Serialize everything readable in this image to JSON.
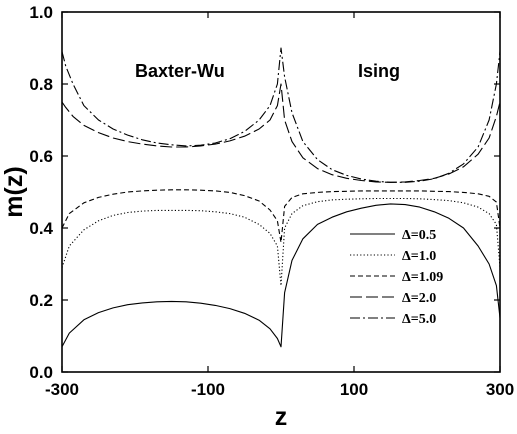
{
  "chart_data": {
    "type": "line",
    "xlabel": "z",
    "ylabel": "m(z)",
    "xlim": [
      -300,
      300
    ],
    "ylim": [
      0.0,
      1.0
    ],
    "x_ticks": [
      "-300",
      "-100",
      "100",
      "300"
    ],
    "y_ticks": [
      "0.0",
      "0.2",
      "0.4",
      "0.6",
      "0.8",
      "1.0"
    ],
    "annotations": [
      "Baxter-Wu",
      "Ising"
    ],
    "legend_position": "bottom-right",
    "grid": false,
    "series": [
      {
        "name": "Δ=0.5",
        "dash": "solid",
        "x": [
          -300,
          -290,
          -270,
          -250,
          -230,
          -210,
          -190,
          -170,
          -150,
          -130,
          -110,
          -90,
          -70,
          -50,
          -30,
          -15,
          -5,
          0,
          5,
          15,
          30,
          50,
          70,
          90,
          110,
          130,
          150,
          170,
          190,
          210,
          230,
          250,
          270,
          285,
          295,
          300
        ],
        "y": [
          0.07,
          0.108,
          0.145,
          0.165,
          0.178,
          0.187,
          0.192,
          0.195,
          0.196,
          0.195,
          0.191,
          0.185,
          0.176,
          0.163,
          0.144,
          0.12,
          0.093,
          0.07,
          0.22,
          0.31,
          0.37,
          0.41,
          0.43,
          0.445,
          0.455,
          0.463,
          0.467,
          0.465,
          0.458,
          0.445,
          0.427,
          0.4,
          0.35,
          0.3,
          0.24,
          0.15
        ]
      },
      {
        "name": "Δ=1.0",
        "dash": "dotted",
        "x": [
          -300,
          -290,
          -270,
          -250,
          -230,
          -210,
          -190,
          -170,
          -150,
          -130,
          -110,
          -90,
          -70,
          -50,
          -30,
          -15,
          -5,
          0,
          5,
          15,
          30,
          50,
          70,
          90,
          110,
          130,
          150,
          170,
          190,
          210,
          230,
          250,
          270,
          285,
          295,
          300
        ],
        "y": [
          0.29,
          0.35,
          0.395,
          0.42,
          0.435,
          0.443,
          0.447,
          0.449,
          0.449,
          0.449,
          0.448,
          0.445,
          0.44,
          0.43,
          0.41,
          0.385,
          0.35,
          0.24,
          0.4,
          0.44,
          0.462,
          0.473,
          0.478,
          0.48,
          0.481,
          0.482,
          0.482,
          0.482,
          0.481,
          0.479,
          0.476,
          0.47,
          0.458,
          0.44,
          0.41,
          0.29
        ]
      },
      {
        "name": "Δ=1.09",
        "dash": "short-dash",
        "x": [
          -300,
          -290,
          -270,
          -250,
          -230,
          -210,
          -190,
          -170,
          -150,
          -130,
          -110,
          -90,
          -70,
          -50,
          -30,
          -15,
          -5,
          0,
          5,
          15,
          30,
          50,
          70,
          90,
          110,
          130,
          150,
          170,
          190,
          210,
          230,
          250,
          270,
          285,
          295,
          300
        ],
        "y": [
          0.4,
          0.44,
          0.47,
          0.485,
          0.494,
          0.5,
          0.503,
          0.505,
          0.506,
          0.506,
          0.505,
          0.503,
          0.499,
          0.49,
          0.475,
          0.45,
          0.42,
          0.36,
          0.46,
          0.485,
          0.495,
          0.499,
          0.501,
          0.502,
          0.503,
          0.503,
          0.503,
          0.503,
          0.503,
          0.502,
          0.501,
          0.499,
          0.495,
          0.488,
          0.472,
          0.4
        ]
      },
      {
        "name": "Δ=2.0",
        "dash": "long-dash",
        "x": [
          -300,
          -295,
          -285,
          -270,
          -250,
          -230,
          -210,
          -190,
          -170,
          -150,
          -130,
          -110,
          -90,
          -70,
          -50,
          -30,
          -15,
          -5,
          0,
          5,
          15,
          30,
          50,
          70,
          90,
          110,
          130,
          150,
          170,
          190,
          210,
          230,
          250,
          270,
          285,
          295,
          300
        ],
        "y": [
          0.75,
          0.735,
          0.71,
          0.685,
          0.665,
          0.65,
          0.64,
          0.633,
          0.628,
          0.625,
          0.625,
          0.628,
          0.633,
          0.642,
          0.655,
          0.675,
          0.7,
          0.74,
          0.8,
          0.7,
          0.64,
          0.595,
          0.565,
          0.548,
          0.538,
          0.532,
          0.528,
          0.527,
          0.528,
          0.532,
          0.538,
          0.55,
          0.57,
          0.605,
          0.65,
          0.71,
          0.75
        ]
      },
      {
        "name": "Δ=5.0",
        "dash": "dash-dot",
        "x": [
          -300,
          -295,
          -285,
          -270,
          -250,
          -230,
          -210,
          -190,
          -170,
          -150,
          -130,
          -110,
          -90,
          -70,
          -50,
          -30,
          -15,
          -5,
          0,
          5,
          15,
          30,
          50,
          70,
          90,
          110,
          130,
          150,
          170,
          190,
          210,
          230,
          250,
          270,
          285,
          295,
          300
        ],
        "y": [
          0.89,
          0.85,
          0.8,
          0.74,
          0.7,
          0.675,
          0.658,
          0.645,
          0.636,
          0.631,
          0.628,
          0.63,
          0.636,
          0.648,
          0.668,
          0.7,
          0.74,
          0.8,
          0.9,
          0.82,
          0.72,
          0.64,
          0.59,
          0.562,
          0.546,
          0.536,
          0.53,
          0.527,
          0.527,
          0.53,
          0.537,
          0.552,
          0.578,
          0.625,
          0.7,
          0.8,
          0.89
        ]
      }
    ]
  }
}
